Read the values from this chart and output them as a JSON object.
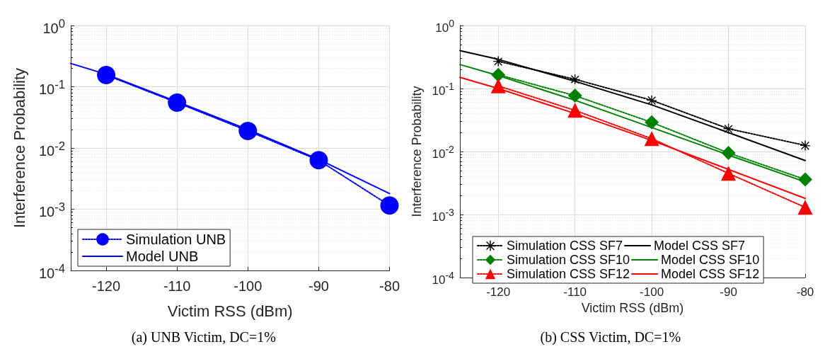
{
  "chart_data": [
    {
      "type": "line",
      "xlabel": "Victim RSS (dBm)",
      "ylabel": "Interference Probability",
      "annotations": [
        "(a) UNB Victim, DC=1%"
      ],
      "log": "y",
      "grid": true,
      "legend": "bottom left",
      "xlim": [
        -125,
        -80
      ],
      "xticks": [
        -120,
        -110,
        -100,
        -90,
        -80
      ],
      "ylim": [
        0.0001,
        1
      ],
      "yticks": [
        {
          "value": 0.0001,
          "label": "10$^{-4}$"
        },
        {
          "value": 0.001,
          "label": "10$^{-3}$"
        },
        {
          "value": 0.01,
          "label": "10$^{-2}$"
        },
        {
          "value": 0.1,
          "label": "10$^{-1}$"
        },
        {
          "value": 1,
          "label": "10$^{0}$"
        }
      ],
      "series": [
        {
          "name": "Simulation UNB",
          "color": "#0000ff",
          "marker": "circle",
          "line_style": "dotted",
          "x": [
            -120,
            -110,
            -100,
            -90,
            -80
          ],
          "values": [
            0.155,
            0.055,
            0.019,
            0.0063,
            0.00115
          ]
        },
        {
          "name": "Model UNB",
          "color": "#0000ff",
          "marker": "none",
          "line_style": "solid",
          "x": [
            -125,
            -120,
            -110,
            -100,
            -90,
            -80
          ],
          "values": [
            0.24,
            0.16,
            0.057,
            0.02,
            0.0065,
            0.0018
          ]
        }
      ]
    },
    {
      "type": "line",
      "xlabel": "Victim RSS (dBm)",
      "ylabel": "Interference Probability",
      "annotations": [
        "(b) CSS Victim, DC=1%"
      ],
      "log": "y",
      "grid": true,
      "legend": "bottom",
      "xlim": [
        -125,
        -80
      ],
      "xticks": [
        -120,
        -110,
        -100,
        -90,
        -80
      ],
      "ylim": [
        0.0001,
        1
      ],
      "yticks": [
        {
          "value": 0.0001,
          "label": "10$^{-4}$"
        },
        {
          "value": 0.001,
          "label": "10$^{-3}$"
        },
        {
          "value": 0.01,
          "label": "10$^{-2}$"
        },
        {
          "value": 0.1,
          "label": "10$^{-1}$"
        },
        {
          "value": 1,
          "label": "10$^{0}$"
        }
      ],
      "series": [
        {
          "name": "Simulation CSS SF7",
          "color": "#000000",
          "marker": "cross",
          "line_style": "dotted",
          "x": [
            -120,
            -110,
            -100,
            -90,
            -80
          ],
          "values": [
            0.27,
            0.14,
            0.065,
            0.023,
            0.0125
          ]
        },
        {
          "name": "Model CSS SF7",
          "color": "#000000",
          "marker": "none",
          "line_style": "solid",
          "x": [
            -125,
            -120,
            -110,
            -100,
            -90,
            -80
          ],
          "values": [
            0.4,
            0.29,
            0.13,
            0.055,
            0.02,
            0.0072
          ]
        },
        {
          "name": "Simulation CSS SF10",
          "color": "#008000",
          "marker": "diamond",
          "line_style": "dotted",
          "x": [
            -120,
            -110,
            -100,
            -90,
            -80
          ],
          "values": [
            0.165,
            0.077,
            0.029,
            0.0095,
            0.0036
          ]
        },
        {
          "name": "Model CSS SF10",
          "color": "#008000",
          "marker": "none",
          "line_style": "solid",
          "x": [
            -125,
            -120,
            -110,
            -100,
            -90,
            -80
          ],
          "values": [
            0.24,
            0.16,
            0.065,
            0.024,
            0.0088,
            0.0033
          ]
        },
        {
          "name": "Simulation CSS SF12",
          "color": "#ff0000",
          "marker": "triangle",
          "line_style": "dotted",
          "x": [
            -120,
            -110,
            -100,
            -90,
            -80
          ],
          "values": [
            0.11,
            0.045,
            0.016,
            0.0045,
            0.0013
          ]
        },
        {
          "name": "Model CSS SF12",
          "color": "#ff0000",
          "marker": "none",
          "line_style": "solid",
          "x": [
            -125,
            -120,
            -110,
            -100,
            -90,
            -80
          ],
          "values": [
            0.15,
            0.1,
            0.04,
            0.015,
            0.0052,
            0.0018
          ]
        }
      ]
    }
  ]
}
